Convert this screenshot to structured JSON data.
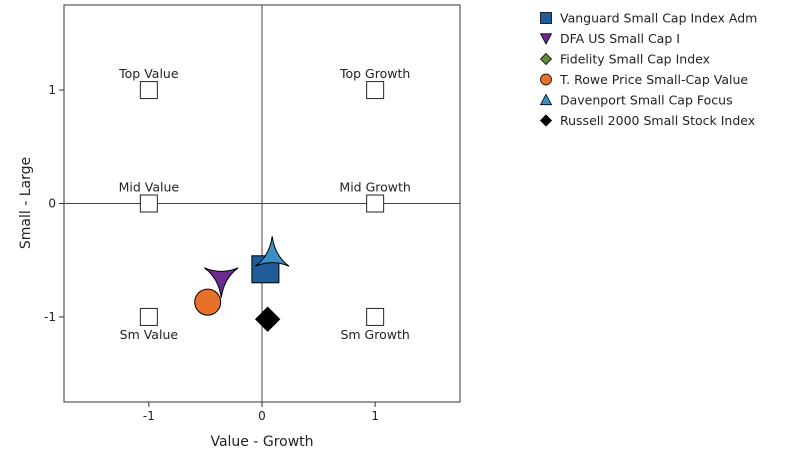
{
  "chart_data": {
    "type": "scatter",
    "title": "",
    "xlabel": "Value - Growth",
    "ylabel": "Small - Large",
    "xlim": [
      -1.75,
      1.75
    ],
    "ylim": [
      -1.75,
      1.75
    ],
    "xticks": [
      -1,
      0,
      1
    ],
    "yticks": [
      -1,
      0,
      1
    ],
    "grid": false,
    "reference_lines": {
      "x": 0,
      "y": 0
    },
    "legend_position": "right",
    "style_boxes": [
      {
        "label": "Top Value",
        "x": -1,
        "y": 1,
        "label_position": "above"
      },
      {
        "label": "Top Growth",
        "x": 1,
        "y": 1,
        "label_position": "above"
      },
      {
        "label": "Mid Value",
        "x": -1,
        "y": 0,
        "label_position": "above"
      },
      {
        "label": "Mid Growth",
        "x": 1,
        "y": 0,
        "label_position": "above"
      },
      {
        "label": "Sm Value",
        "x": -1,
        "y": -1,
        "label_position": "below"
      },
      {
        "label": "Sm Growth",
        "x": 1,
        "y": -1,
        "label_position": "below"
      }
    ],
    "series": [
      {
        "name": "Vanguard Small Cap Index Adm",
        "marker": "square",
        "color": "#1f5c99",
        "x": 0.03,
        "y": -0.58
      },
      {
        "name": "DFA US Small Cap I",
        "marker": "triangle-down",
        "color": "#6a2c91",
        "x": -0.36,
        "y": -0.67
      },
      {
        "name": "Fidelity Small Cap Index",
        "marker": "diamond",
        "color": "#5a8c3a",
        "x": 0.06,
        "y": -0.57
      },
      {
        "name": "T. Rowe Price Small-Cap Value",
        "marker": "circle",
        "color": "#e8712a",
        "x": -0.48,
        "y": -0.87
      },
      {
        "name": "Davenport Small Cap Focus",
        "marker": "triangle-up",
        "color": "#3b8fc9",
        "x": 0.09,
        "y": -0.45
      },
      {
        "name": "Russell 2000 Small Stock Index",
        "marker": "diamond",
        "color": "#000000",
        "x": 0.05,
        "y": -1.02
      }
    ]
  }
}
